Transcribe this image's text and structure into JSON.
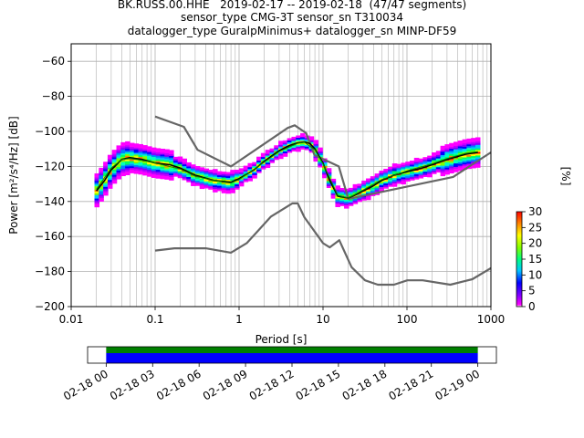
{
  "title": {
    "line1": "BK.RUSS.00.HHE   2019-02-17 -- 2019-02-18  (47/47 segments)",
    "line2": "sensor_type CMG-3T sensor_sn T310034",
    "line3": "datalogger_type GuralpMinimus+ datalogger_sn MINP-DF59"
  },
  "chart_data": [
    {
      "type": "heatmap",
      "title": "BK.RUSS.00.HHE   2019-02-17 -- 2019-02-18  (47/47 segments)",
      "xlabel": "Period [s]",
      "ylabel": "Power [m²/s⁴/Hz] [dB]",
      "x_scale": "log",
      "xlim": [
        0.01,
        1000
      ],
      "ylim": [
        -200,
        -50
      ],
      "x_ticks": [
        0.01,
        0.1,
        1,
        10,
        100,
        1000
      ],
      "x_tick_labels": [
        "0.01",
        "0.1",
        "1",
        "10",
        "100",
        "1000"
      ],
      "y_ticks": [
        -200,
        -180,
        -160,
        -140,
        -120,
        -100,
        -80,
        -60
      ],
      "y_tick_labels": [
        "−200",
        "−180",
        "−160",
        "−140",
        "−120",
        "−100",
        "−80",
        "−60"
      ],
      "grid": true,
      "colorbar": {
        "label": "[%]",
        "ticks": [
          "0",
          "5",
          "10",
          "15",
          "20",
          "25",
          "30"
        ],
        "range": [
          0,
          30
        ]
      },
      "series": [
        {
          "name": "",
          "kind": "noise-model-high",
          "color": "#666666",
          "x": [
            0.1,
            0.22,
            0.32,
            0.8,
            3.8,
            4.6,
            6.3,
            7.9,
            15.4,
            20,
            354.8,
            1000
          ],
          "y": [
            -91.5,
            -97.4,
            -110.5,
            -120,
            -98,
            -96.5,
            -101,
            -113.5,
            -120,
            -138.5,
            -126,
            -112
          ]
        },
        {
          "name": "",
          "kind": "noise-model-low",
          "color": "#666666",
          "x": [
            0.1,
            0.17,
            0.4,
            0.8,
            1.24,
            2.4,
            4.3,
            5.0,
            6.0,
            10,
            12,
            15.6,
            21.9,
            31.6,
            45,
            70,
            101,
            154,
            328,
            600,
            1000
          ],
          "y": [
            -168,
            -166.7,
            -166.7,
            -169.2,
            -163.7,
            -148.6,
            -141.1,
            -141.1,
            -149,
            -163.8,
            -166.2,
            -162.1,
            -177.5,
            -185,
            -187.5,
            -187.5,
            -185,
            -185,
            -187.5,
            -184.4,
            -178
          ]
        },
        {
          "name": "",
          "kind": "mode",
          "color": "#000000",
          "x": [
            0.02,
            0.025,
            0.03,
            0.04,
            0.05,
            0.07,
            0.1,
            0.15,
            0.2,
            0.3,
            0.5,
            0.8,
            1.0,
            1.5,
            2.0,
            3.0,
            4.0,
            5.0,
            6.0,
            7.0,
            8.0,
            10,
            12,
            15,
            20,
            25,
            30,
            40,
            50,
            70,
            100,
            150,
            200,
            300,
            500,
            700
          ],
          "y": [
            -134,
            -128,
            -122,
            -116,
            -115,
            -116,
            -118,
            -119,
            -121,
            -125,
            -128,
            -129,
            -127,
            -122,
            -117,
            -111,
            -108,
            -106.5,
            -106,
            -107,
            -110,
            -118,
            -128,
            -137,
            -138,
            -136,
            -134,
            -131,
            -128,
            -125,
            -123,
            -121,
            -119,
            -116,
            -113,
            -112
          ]
        },
        {
          "name": "",
          "kind": "mean",
          "color": "#008800",
          "x": [
            0.02,
            0.03,
            0.04,
            0.05,
            0.07,
            0.1,
            0.2,
            0.3,
            0.5,
            0.8,
            1.0,
            2.0,
            3.0,
            5.0,
            6.0,
            8.0,
            10,
            15,
            20,
            30,
            50,
            100,
            200,
            300,
            500,
            700
          ],
          "y": [
            -133,
            -121,
            -116,
            -115.5,
            -116.5,
            -118,
            -121.5,
            -125.5,
            -128,
            -129.5,
            -127.5,
            -117.5,
            -111.5,
            -106.8,
            -106.2,
            -110.5,
            -118.5,
            -136.5,
            -138,
            -133.5,
            -127.5,
            -122.5,
            -118.5,
            -115.5,
            -112.5,
            -111.5
          ]
        }
      ]
    },
    {
      "type": "bar",
      "kind": "data-coverage",
      "x_tick_labels": [
        "02-18 00",
        "02-18 03",
        "02-18 06",
        "02-18 09",
        "02-18 12",
        "02-18 15",
        "02-18 18",
        "02-18 21",
        "02-19 00"
      ],
      "coverage_start_hours": 0,
      "coverage_end_hours": 24,
      "xlim_hours": [
        -1.2,
        25.2
      ],
      "colors": {
        "upper": "#008000",
        "lower": "#0000ff"
      }
    }
  ]
}
